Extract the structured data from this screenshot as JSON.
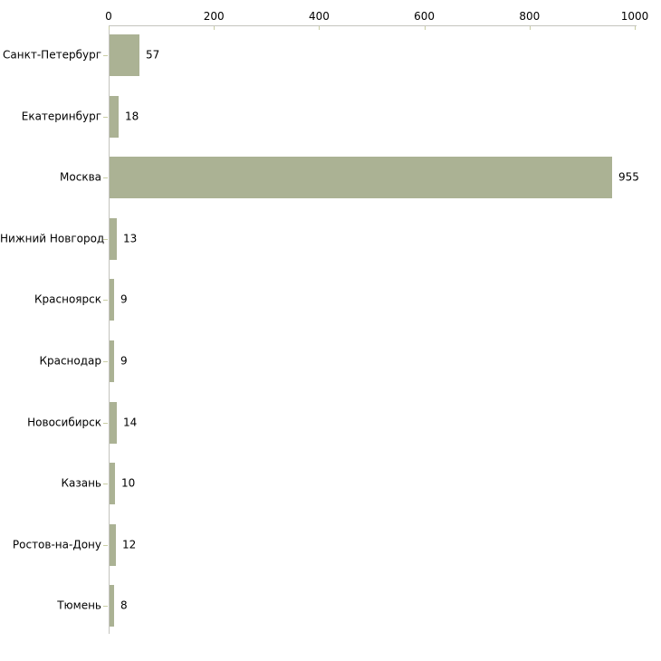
{
  "chart": {
    "background_color": "#ffffff",
    "bar_color": "#abb294",
    "axis_line_color": "#c4c4be",
    "tick_color": "#c9cda4",
    "text_color": "#000000"
  },
  "chart_data": {
    "type": "bar",
    "orientation": "horizontal",
    "title": "",
    "xlabel": "",
    "ylabel": "",
    "categories": [
      "Санкт-Петербург",
      "Екатеринбург",
      "Москва",
      "Нижний Новгород",
      "Красноярск",
      "Краснодар",
      "Новосибирск",
      "Казань",
      "Ростов-на-Дону",
      "Тюмень"
    ],
    "values": [
      57,
      18,
      955,
      13,
      9,
      9,
      14,
      10,
      12,
      8
    ],
    "x_ticks": [
      0,
      200,
      400,
      600,
      800,
      1000
    ],
    "xlim": [
      0,
      1000
    ],
    "grid": false,
    "legend": "none",
    "value_labels_shown": true,
    "x_axis_position": "top"
  }
}
